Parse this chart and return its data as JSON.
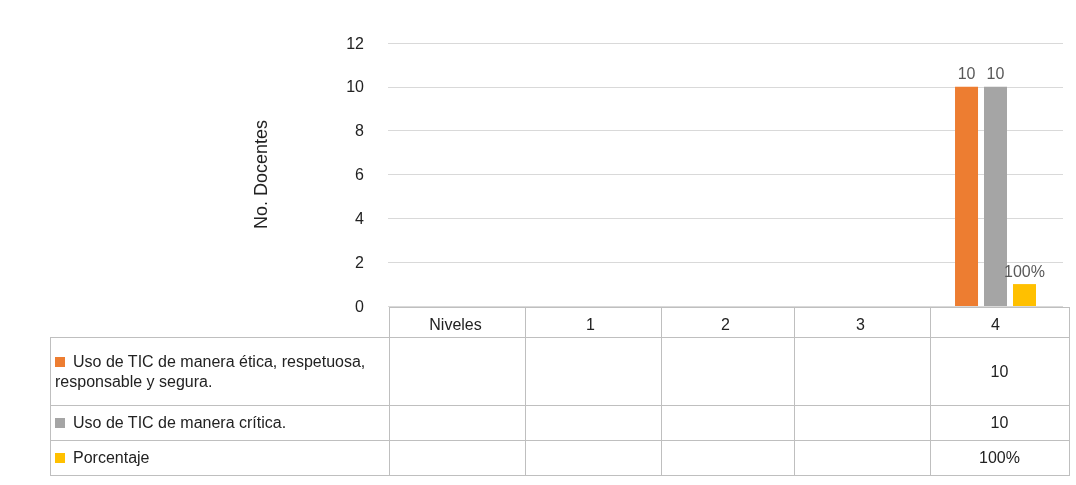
{
  "chart_data": {
    "type": "bar",
    "ylabel": "No. Docentes",
    "categories": [
      "Niveles",
      "1",
      "2",
      "3",
      "4"
    ],
    "series": [
      {
        "name": "Uso de TIC de manera ética, respetuosa, responsable y segura.",
        "color": "#ed7d31",
        "values": [
          null,
          null,
          null,
          null,
          10
        ],
        "value_labels": [
          null,
          null,
          null,
          null,
          "10"
        ]
      },
      {
        "name": "Uso de TIC de manera crítica.",
        "color": "#a5a5a5",
        "values": [
          null,
          null,
          null,
          null,
          10
        ],
        "value_labels": [
          null,
          null,
          null,
          null,
          "10"
        ]
      },
      {
        "name": "Porcentaje",
        "color": "#ffc000",
        "values": [
          null,
          null,
          null,
          null,
          1
        ],
        "value_labels": [
          null,
          null,
          null,
          null,
          "100%"
        ]
      }
    ],
    "ylim": [
      0,
      12
    ],
    "yticks": [
      0,
      2,
      4,
      6,
      8,
      10,
      12
    ],
    "grid": "y",
    "legend": "bottom"
  }
}
